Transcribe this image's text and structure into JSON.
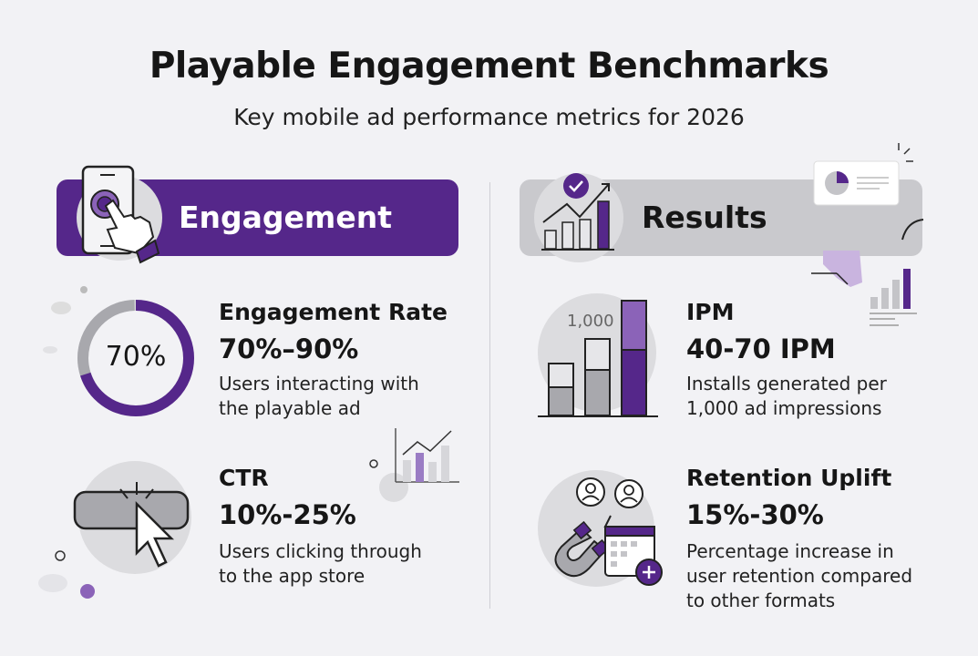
{
  "header": {
    "title": "Playable Engagement Benchmarks",
    "subtitle": "Key mobile ad performance metrics for 2026"
  },
  "colors": {
    "accent": "#55278a",
    "accent_light": "#8b63b8",
    "gray": "#c9c9cd",
    "background": "#f2f2f5"
  },
  "sections": [
    {
      "label": "Engagement",
      "icon": "tap-phone-icon",
      "metrics": [
        {
          "title": "Engagement Rate",
          "value": "70%–90%",
          "desc": [
            "Users interacting with",
            "the playable ad"
          ],
          "icon": "donut-gauge-icon",
          "gauge_label": "70%",
          "gauge_percent": 70
        },
        {
          "title": "CTR",
          "value": "10%-25%",
          "desc": [
            "Users clicking through",
            "to the app store"
          ],
          "icon": "cursor-click-icon"
        }
      ]
    },
    {
      "label": "Results",
      "icon": "growth-chart-icon",
      "metrics": [
        {
          "title": "IPM",
          "value": "40-70 IPM",
          "desc": [
            "Installs generated per",
            "1,000 ad impressions"
          ],
          "icon": "bar-chart-icon",
          "icon_label": "1,000"
        },
        {
          "title": "Retention Uplift",
          "value": "15%-30%",
          "desc": [
            "Percentage increase in",
            "user retention compared",
            "to other formats"
          ],
          "icon": "magnet-users-calendar-icon"
        }
      ]
    }
  ]
}
